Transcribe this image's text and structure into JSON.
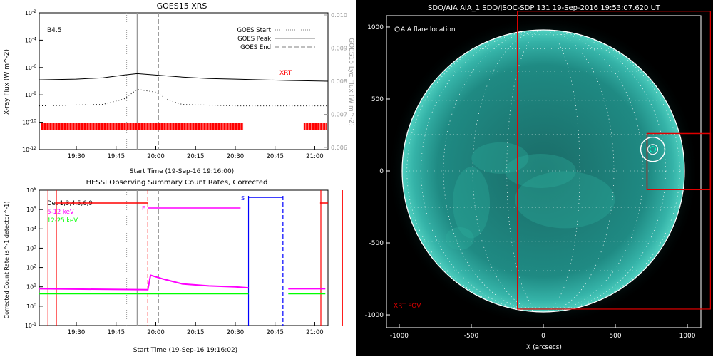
{
  "chart_data": [
    {
      "type": "line",
      "title": "GOES15 XRS",
      "xlabel": "Start Time (19-Sep-16 19:16:00)",
      "ylabel": "X-ray Flux (W m^-2)",
      "y2label": "GOES15 Lyα Flux (W m^-2)",
      "class_label": "B4.5",
      "x_ticks": [
        "19:30",
        "19:45",
        "20:00",
        "20:15",
        "20:30",
        "20:45",
        "21:00"
      ],
      "y_ticks": [
        "10^-2",
        "10^-4",
        "10^-6",
        "10^-8",
        "10^-10",
        "10^-12"
      ],
      "y2_ticks": [
        "0.010",
        "0.009",
        "0.008",
        "0.007",
        "0.006"
      ],
      "legend": [
        {
          "label": "GOES Start",
          "style": "dotted"
        },
        {
          "label": "GOES Peak",
          "style": "solid"
        },
        {
          "label": "GOES End",
          "style": "dashed"
        }
      ],
      "xrt_label": "XRT",
      "markers_hhmm": {
        "start": "19:49",
        "peak": "19:53",
        "end": "20:01"
      },
      "series": [
        {
          "values_x": [
            "19:16",
            "19:30",
            "19:40",
            "19:48",
            "19:53",
            "20:00",
            "20:10",
            "20:20",
            "20:30",
            "20:40",
            "20:50",
            "21:05"
          ],
          "values_y_log": [
            -6.9,
            -6.85,
            -6.75,
            -6.55,
            -6.45,
            -6.55,
            -6.7,
            -6.8,
            -6.85,
            -6.9,
            -6.95,
            -7.0
          ]
        },
        {
          "values_x": [
            "19:16",
            "19:40",
            "19:48",
            "19:53",
            "20:00",
            "20:05",
            "20:10",
            "20:30",
            "21:05"
          ],
          "values_y_log": [
            -8.8,
            -8.7,
            -8.3,
            -7.6,
            -7.8,
            -8.4,
            -8.7,
            -8.8,
            -8.8
          ]
        }
      ],
      "xrt_intervals": [
        [
          "19:16",
          "20:33"
        ],
        [
          "20:55",
          "21:05"
        ]
      ],
      "colors": {
        "xrt": "#ff0000",
        "data": "#000000",
        "markers": "#999999"
      }
    },
    {
      "type": "line",
      "title": "HESSI Observing Summary Count Rates, Corrected",
      "xlabel": "Start Time (19-Sep-16 19:16:02)",
      "ylabel": "Corrected Count Rate (s^-1 detector^-1)",
      "x_ticks": [
        "19:30",
        "19:45",
        "20:00",
        "20:15",
        "20:30",
        "20:45",
        "21:00"
      ],
      "y_ticks": [
        "10^6",
        "10^5",
        "10^4",
        "10^3",
        "10^2",
        "10^1",
        "10^0",
        "10^-1"
      ],
      "legend": [
        {
          "label": "Det 1,3,4,5,6,9",
          "color": "#000000"
        },
        {
          "label": "6-12 keV",
          "color": "#ff00ff"
        },
        {
          "label": "12-25 keV",
          "color": "#00ff00"
        }
      ],
      "flags": {
        "F": "F",
        "S": "S"
      },
      "attenuator_x": [
        "19:57",
        "20:48"
      ],
      "saa_interval": [
        "20:35",
        "20:48"
      ],
      "night_intervals": [
        [
          "19:16",
          "19:22"
        ],
        [
          "21:04",
          "21:05"
        ]
      ],
      "series": [
        {
          "name": "6-12 keV",
          "values_x": [
            "19:16",
            "19:57",
            "19:58",
            "20:03",
            "20:10",
            "20:20",
            "20:30",
            "20:35"
          ],
          "values_y_log": [
            0.9,
            0.85,
            1.6,
            1.4,
            1.15,
            1.05,
            1.0,
            0.95
          ]
        },
        {
          "name": "12-25 keV",
          "values_x": [
            "19:16",
            "20:35"
          ],
          "values_y_log": [
            0.65,
            0.65
          ]
        }
      ]
    },
    {
      "type": "heatmap",
      "title": "SDO/AIA AIA_1 SDO/JSOC-SDP 131 19-Sep-2016 19:53:07.620 UT",
      "xlabel": "X (arcsecs)",
      "x_ticks": [
        "-1000",
        "-500",
        "0",
        "500",
        "1000"
      ],
      "y_ticks": [
        "1000",
        "500",
        "0",
        "-500",
        "-1000"
      ],
      "legend_label": "AIA flare location",
      "fov_label": "XRT FOV",
      "flare_location": {
        "x": 760,
        "y": 150
      },
      "colors": {
        "disk": "#1e8f84",
        "fov": "#e00000"
      }
    }
  ]
}
